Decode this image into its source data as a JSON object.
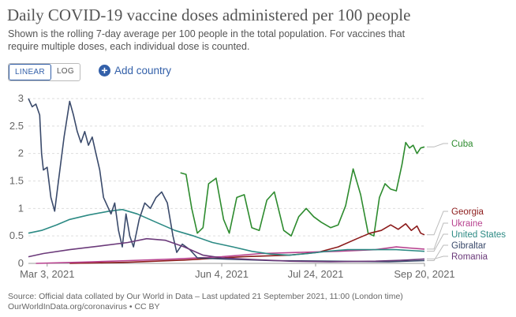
{
  "header": {
    "title": "Daily COVID-19 vaccine doses administered per 100 people",
    "subtitle": "Shown is the rolling 7-day average per 100 people in the total population. For vaccines that require multiple doses, each individual dose is counted."
  },
  "controls": {
    "linear_label": "LINEAR",
    "log_label": "LOG",
    "add_country_label": "Add country"
  },
  "footer": {
    "source_line1": "Source: Official data collated by Our World in Data – Last updated 21 September 2021, 11:00 (London time)",
    "source_line2": "OurWorldInData.org/coronavirus • CC BY"
  },
  "chart_data": {
    "type": "line",
    "title": "Daily COVID-19 vaccine doses administered per 100 people",
    "x_axis": {
      "type": "date",
      "ticks": [
        "Mar 3, 2021",
        "Jun 4, 2021",
        "Jul 24, 2021",
        "Sep 20, 2021"
      ],
      "range": [
        "2021-02-21",
        "2021-09-20"
      ]
    },
    "y_axis": {
      "ticks": [
        0,
        0.5,
        1,
        1.5,
        2,
        2.5,
        3
      ],
      "ylim": [
        0,
        3
      ]
    },
    "grid": "horizontal dashed",
    "legend": "right, labels at line ends",
    "series": [
      {
        "name": "Cuba",
        "color": "#2d8b2e",
        "points": [
          [
            "2021-05-13",
            1.65
          ],
          [
            "2021-05-16",
            1.62
          ],
          [
            "2021-05-19",
            1.0
          ],
          [
            "2021-05-22",
            0.55
          ],
          [
            "2021-05-25",
            0.65
          ],
          [
            "2021-05-28",
            1.45
          ],
          [
            "2021-06-01",
            1.55
          ],
          [
            "2021-06-05",
            0.8
          ],
          [
            "2021-06-08",
            0.55
          ],
          [
            "2021-06-12",
            1.2
          ],
          [
            "2021-06-16",
            1.25
          ],
          [
            "2021-06-20",
            0.65
          ],
          [
            "2021-06-24",
            0.6
          ],
          [
            "2021-06-28",
            1.15
          ],
          [
            "2021-07-02",
            1.3
          ],
          [
            "2021-07-07",
            0.6
          ],
          [
            "2021-07-11",
            0.5
          ],
          [
            "2021-07-15",
            0.85
          ],
          [
            "2021-07-19",
            1.0
          ],
          [
            "2021-07-23",
            0.85
          ],
          [
            "2021-07-27",
            0.75
          ],
          [
            "2021-08-01",
            0.65
          ],
          [
            "2021-08-05",
            0.7
          ],
          [
            "2021-08-09",
            1.05
          ],
          [
            "2021-08-13",
            1.72
          ],
          [
            "2021-08-17",
            1.25
          ],
          [
            "2021-08-21",
            0.55
          ],
          [
            "2021-08-24",
            0.5
          ],
          [
            "2021-08-27",
            1.2
          ],
          [
            "2021-08-30",
            1.45
          ],
          [
            "2021-09-02",
            1.35
          ],
          [
            "2021-09-05",
            1.32
          ],
          [
            "2021-09-08",
            1.8
          ],
          [
            "2021-09-10",
            2.2
          ],
          [
            "2021-09-12",
            2.1
          ],
          [
            "2021-09-14",
            2.15
          ],
          [
            "2021-09-16",
            2.0
          ],
          [
            "2021-09-18",
            2.1
          ],
          [
            "2021-09-20",
            2.12
          ]
        ]
      },
      {
        "name": "Georgia",
        "color": "#8c1b1b",
        "points": [
          [
            "2021-03-15",
            0.0
          ],
          [
            "2021-04-15",
            0.02
          ],
          [
            "2021-05-15",
            0.06
          ],
          [
            "2021-06-15",
            0.12
          ],
          [
            "2021-07-10",
            0.15
          ],
          [
            "2021-07-25",
            0.2
          ],
          [
            "2021-08-05",
            0.3
          ],
          [
            "2021-08-15",
            0.45
          ],
          [
            "2021-08-22",
            0.55
          ],
          [
            "2021-08-28",
            0.6
          ],
          [
            "2021-09-02",
            0.7
          ],
          [
            "2021-09-06",
            0.62
          ],
          [
            "2021-09-10",
            0.72
          ],
          [
            "2021-09-13",
            0.6
          ],
          [
            "2021-09-16",
            0.68
          ],
          [
            "2021-09-18",
            0.55
          ],
          [
            "2021-09-20",
            0.52
          ]
        ]
      },
      {
        "name": "Ukraine",
        "color": "#b8428f",
        "points": [
          [
            "2021-02-25",
            0.0
          ],
          [
            "2021-03-20",
            0.02
          ],
          [
            "2021-04-15",
            0.05
          ],
          [
            "2021-05-10",
            0.08
          ],
          [
            "2021-06-04",
            0.12
          ],
          [
            "2021-06-25",
            0.18
          ],
          [
            "2021-07-15",
            0.2
          ],
          [
            "2021-08-05",
            0.22
          ],
          [
            "2021-08-25",
            0.25
          ],
          [
            "2021-09-05",
            0.3
          ],
          [
            "2021-09-12",
            0.28
          ],
          [
            "2021-09-20",
            0.26
          ]
        ]
      },
      {
        "name": "United States",
        "color": "#2c8a84",
        "points": [
          [
            "2021-02-21",
            0.55
          ],
          [
            "2021-02-28",
            0.6
          ],
          [
            "2021-03-08",
            0.7
          ],
          [
            "2021-03-15",
            0.8
          ],
          [
            "2021-03-25",
            0.88
          ],
          [
            "2021-04-05",
            0.95
          ],
          [
            "2021-04-12",
            0.98
          ],
          [
            "2021-04-20",
            0.9
          ],
          [
            "2021-04-30",
            0.75
          ],
          [
            "2021-05-10",
            0.6
          ],
          [
            "2021-05-20",
            0.5
          ],
          [
            "2021-05-30",
            0.38
          ],
          [
            "2021-06-10",
            0.3
          ],
          [
            "2021-06-20",
            0.22
          ],
          [
            "2021-06-30",
            0.17
          ],
          [
            "2021-07-10",
            0.15
          ],
          [
            "2021-07-20",
            0.18
          ],
          [
            "2021-07-30",
            0.22
          ],
          [
            "2021-08-10",
            0.25
          ],
          [
            "2021-08-25",
            0.25
          ],
          [
            "2021-09-05",
            0.25
          ],
          [
            "2021-09-15",
            0.23
          ],
          [
            "2021-09-20",
            0.22
          ]
        ]
      },
      {
        "name": "Gibraltar",
        "color": "#3a4a6b",
        "points": [
          [
            "2021-02-21",
            3.0
          ],
          [
            "2021-02-23",
            2.85
          ],
          [
            "2021-02-25",
            2.9
          ],
          [
            "2021-02-27",
            2.7
          ],
          [
            "2021-02-28",
            2.0
          ],
          [
            "2021-03-01",
            1.7
          ],
          [
            "2021-03-03",
            1.75
          ],
          [
            "2021-03-05",
            1.2
          ],
          [
            "2021-03-07",
            0.95
          ],
          [
            "2021-03-09",
            1.5
          ],
          [
            "2021-03-12",
            2.3
          ],
          [
            "2021-03-15",
            2.95
          ],
          [
            "2021-03-17",
            2.7
          ],
          [
            "2021-03-19",
            2.4
          ],
          [
            "2021-03-21",
            2.2
          ],
          [
            "2021-03-23",
            2.4
          ],
          [
            "2021-03-25",
            2.15
          ],
          [
            "2021-03-27",
            2.3
          ],
          [
            "2021-03-29",
            2.0
          ],
          [
            "2021-03-31",
            1.7
          ],
          [
            "2021-04-02",
            1.2
          ],
          [
            "2021-04-04",
            1.05
          ],
          [
            "2021-04-06",
            0.9
          ],
          [
            "2021-04-08",
            1.1
          ],
          [
            "2021-04-10",
            0.6
          ],
          [
            "2021-04-12",
            0.3
          ],
          [
            "2021-04-14",
            0.9
          ],
          [
            "2021-04-16",
            0.5
          ],
          [
            "2021-04-18",
            0.3
          ],
          [
            "2021-04-21",
            0.8
          ],
          [
            "2021-04-24",
            1.1
          ],
          [
            "2021-04-27",
            1.0
          ],
          [
            "2021-04-30",
            1.2
          ],
          [
            "2021-05-03",
            1.3
          ],
          [
            "2021-05-06",
            1.1
          ],
          [
            "2021-05-09",
            0.5
          ],
          [
            "2021-05-11",
            0.2
          ],
          [
            "2021-05-14",
            0.35
          ],
          [
            "2021-05-18",
            0.25
          ],
          [
            "2021-05-22",
            0.1
          ],
          [
            "2021-06-05",
            0.08
          ],
          [
            "2021-07-01",
            0.05
          ],
          [
            "2021-08-01",
            0.04
          ],
          [
            "2021-09-01",
            0.03
          ],
          [
            "2021-09-20",
            0.05
          ]
        ]
      },
      {
        "name": "Romania",
        "color": "#6b3a7a",
        "points": [
          [
            "2021-02-21",
            0.12
          ],
          [
            "2021-03-01",
            0.18
          ],
          [
            "2021-03-15",
            0.25
          ],
          [
            "2021-04-01",
            0.32
          ],
          [
            "2021-04-15",
            0.38
          ],
          [
            "2021-04-25",
            0.45
          ],
          [
            "2021-05-05",
            0.42
          ],
          [
            "2021-05-15",
            0.3
          ],
          [
            "2021-05-25",
            0.15
          ],
          [
            "2021-06-04",
            0.1
          ],
          [
            "2021-06-20",
            0.07
          ],
          [
            "2021-07-10",
            0.04
          ],
          [
            "2021-08-01",
            0.03
          ],
          [
            "2021-08-25",
            0.04
          ],
          [
            "2021-09-10",
            0.06
          ],
          [
            "2021-09-20",
            0.08
          ]
        ]
      }
    ]
  }
}
